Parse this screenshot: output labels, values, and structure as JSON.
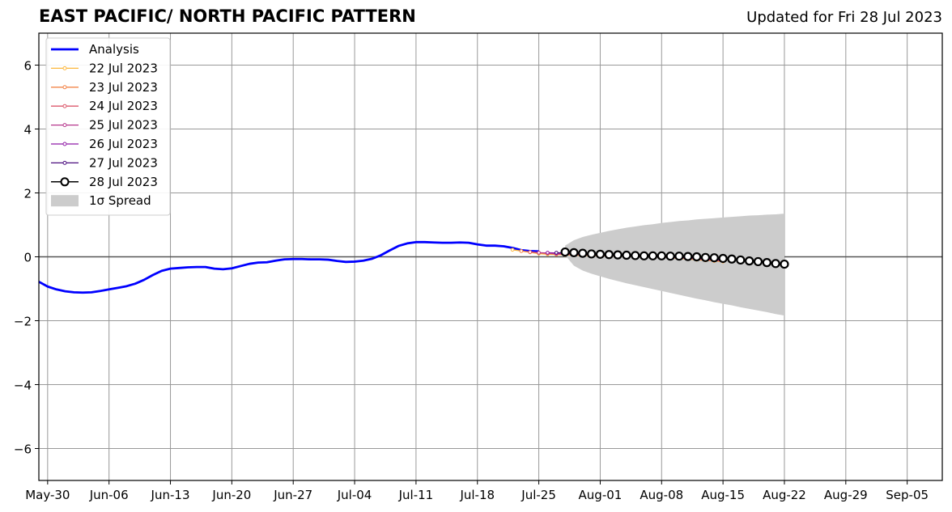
{
  "title": "EAST PACIFIC/ NORTH PACIFIC PATTERN",
  "updated": "Updated for Fri 28 Jul 2023",
  "chart_data": {
    "type": "line",
    "xlim": [
      "2023-05-29",
      "2023-09-09"
    ],
    "ylim": [
      -7,
      7
    ],
    "yticks": [
      -6,
      -4,
      -2,
      0,
      2,
      4,
      6
    ],
    "ytick_labels": [
      "−6",
      "−4",
      "−2",
      "0",
      "2",
      "4",
      "6"
    ],
    "xticks": [
      "2023-05-30",
      "2023-06-06",
      "2023-06-13",
      "2023-06-20",
      "2023-06-27",
      "2023-07-04",
      "2023-07-11",
      "2023-07-18",
      "2023-07-25",
      "2023-08-01",
      "2023-08-08",
      "2023-08-15",
      "2023-08-22",
      "2023-08-29",
      "2023-09-05"
    ],
    "xtick_labels": [
      "May-30",
      "Jun-06",
      "Jun-13",
      "Jun-20",
      "Jun-27",
      "Jul-04",
      "Jul-11",
      "Jul-18",
      "Jul-25",
      "Aug-01",
      "Aug-08",
      "Aug-15",
      "Aug-22",
      "Aug-29",
      "Sep-05"
    ],
    "grid": true,
    "legend_location": "upper-left",
    "legend": [
      {
        "label": "Analysis",
        "color": "#0000ff",
        "kind": "line"
      },
      {
        "label": "22 Jul 2023",
        "color": "#fcb73c",
        "kind": "marker-line"
      },
      {
        "label": "23 Jul 2023",
        "color": "#f3844a",
        "kind": "marker-line"
      },
      {
        "label": "24 Jul 2023",
        "color": "#dc5a6d",
        "kind": "marker-line"
      },
      {
        "label": "25 Jul 2023",
        "color": "#b6378c",
        "kind": "marker-line"
      },
      {
        "label": "26 Jul 2023",
        "color": "#8f1aa6",
        "kind": "marker-line"
      },
      {
        "label": "27 Jul 2023",
        "color": "#4a0c7e",
        "kind": "marker-line"
      },
      {
        "label": "28 Jul 2023",
        "color": "#000000",
        "kind": "open-circle"
      },
      {
        "label": "1σ Spread",
        "color": "#cccccc",
        "kind": "patch"
      }
    ],
    "analysis": {
      "start": "2023-05-29",
      "values": [
        -0.78,
        -0.93,
        -1.02,
        -1.08,
        -1.11,
        -1.12,
        -1.11,
        -1.07,
        -1.02,
        -0.97,
        -0.92,
        -0.84,
        -0.72,
        -0.57,
        -0.44,
        -0.37,
        -0.35,
        -0.33,
        -0.32,
        -0.32,
        -0.37,
        -0.39,
        -0.36,
        -0.29,
        -0.22,
        -0.18,
        -0.17,
        -0.12,
        -0.08,
        -0.07,
        -0.07,
        -0.08,
        -0.08,
        -0.09,
        -0.13,
        -0.16,
        -0.15,
        -0.12,
        -0.06,
        0.05,
        0.2,
        0.34,
        0.42,
        0.46,
        0.46,
        0.45,
        0.44,
        0.44,
        0.45,
        0.44,
        0.39,
        0.35,
        0.35,
        0.33,
        0.28,
        0.21,
        0.18,
        0.17
      ]
    },
    "forecasts": [
      {
        "name": "22 Jul 2023",
        "start": "2023-07-22",
        "values": [
          0.22,
          0.18,
          0.14,
          0.1,
          0.08,
          0.07,
          0.06,
          0.05,
          0.04,
          0.04,
          0.03,
          0.03,
          0.02,
          0.02,
          0.01,
          0.01,
          0.0,
          -0.01,
          -0.03,
          -0.05,
          -0.07,
          -0.09,
          -0.11,
          -0.13,
          -0.15
        ]
      },
      {
        "name": "23 Jul 2023",
        "start": "2023-07-23",
        "values": [
          0.18,
          0.15,
          0.12,
          0.1,
          0.08,
          0.07,
          0.06,
          0.05,
          0.05,
          0.04,
          0.03,
          0.03,
          0.02,
          0.02,
          0.01,
          0.0,
          -0.01,
          -0.02,
          -0.04,
          -0.06,
          -0.08,
          -0.1,
          -0.12,
          -0.14
        ]
      },
      {
        "name": "24 Jul 2023",
        "start": "2023-07-24",
        "values": [
          0.15,
          0.13,
          0.11,
          0.09,
          0.08,
          0.07,
          0.06,
          0.05,
          0.05,
          0.04,
          0.03,
          0.03,
          0.02,
          0.01,
          0.0,
          -0.01,
          -0.02,
          -0.03,
          -0.05,
          -0.07,
          -0.09,
          -0.11,
          -0.13
        ]
      },
      {
        "name": "25 Jul 2023",
        "start": "2023-07-25",
        "values": [
          0.13,
          0.12,
          0.1,
          0.09,
          0.08,
          0.07,
          0.06,
          0.05,
          0.04,
          0.04,
          0.03,
          0.02,
          0.02,
          0.01,
          0.0,
          -0.01,
          -0.02,
          -0.04,
          -0.06,
          -0.08,
          -0.1,
          -0.12
        ]
      },
      {
        "name": "26 Jul 2023",
        "start": "2023-07-26",
        "values": [
          0.13,
          0.12,
          0.11,
          0.09,
          0.08,
          0.07,
          0.06,
          0.05,
          0.05,
          0.04,
          0.03,
          0.02,
          0.02,
          0.01,
          0.0,
          -0.01,
          -0.03,
          -0.04,
          -0.06,
          -0.08,
          -0.1
        ]
      },
      {
        "name": "27 Jul 2023",
        "start": "2023-07-27",
        "values": [
          0.13,
          0.12,
          0.11,
          0.1,
          0.08,
          0.07,
          0.06,
          0.05,
          0.05,
          0.04,
          0.03,
          0.03,
          0.02,
          0.01,
          0.0,
          -0.01,
          -0.03,
          -0.05,
          -0.07,
          -0.09
        ]
      },
      {
        "name": "28 Jul 2023",
        "start": "2023-07-28",
        "values": [
          0.15,
          0.13,
          0.11,
          0.09,
          0.08,
          0.07,
          0.06,
          0.05,
          0.04,
          0.03,
          0.03,
          0.03,
          0.02,
          0.02,
          0.01,
          0.0,
          -0.02,
          -0.03,
          -0.05,
          -0.07,
          -0.1,
          -0.13,
          -0.15,
          -0.18,
          -0.21,
          -0.23
        ]
      }
    ],
    "spread": {
      "start": "2023-07-28",
      "upper": [
        0.35,
        0.52,
        0.62,
        0.69,
        0.75,
        0.81,
        0.86,
        0.91,
        0.95,
        0.99,
        1.02,
        1.06,
        1.09,
        1.12,
        1.14,
        1.17,
        1.19,
        1.21,
        1.23,
        1.25,
        1.27,
        1.29,
        1.3,
        1.32,
        1.33,
        1.35
      ],
      "lower": [
        0.05,
        -0.28,
        -0.43,
        -0.53,
        -0.61,
        -0.69,
        -0.76,
        -0.83,
        -0.89,
        -0.95,
        -1.01,
        -1.07,
        -1.13,
        -1.19,
        -1.25,
        -1.31,
        -1.36,
        -1.42,
        -1.47,
        -1.52,
        -1.58,
        -1.63,
        -1.68,
        -1.73,
        -1.79,
        -1.84
      ]
    }
  }
}
